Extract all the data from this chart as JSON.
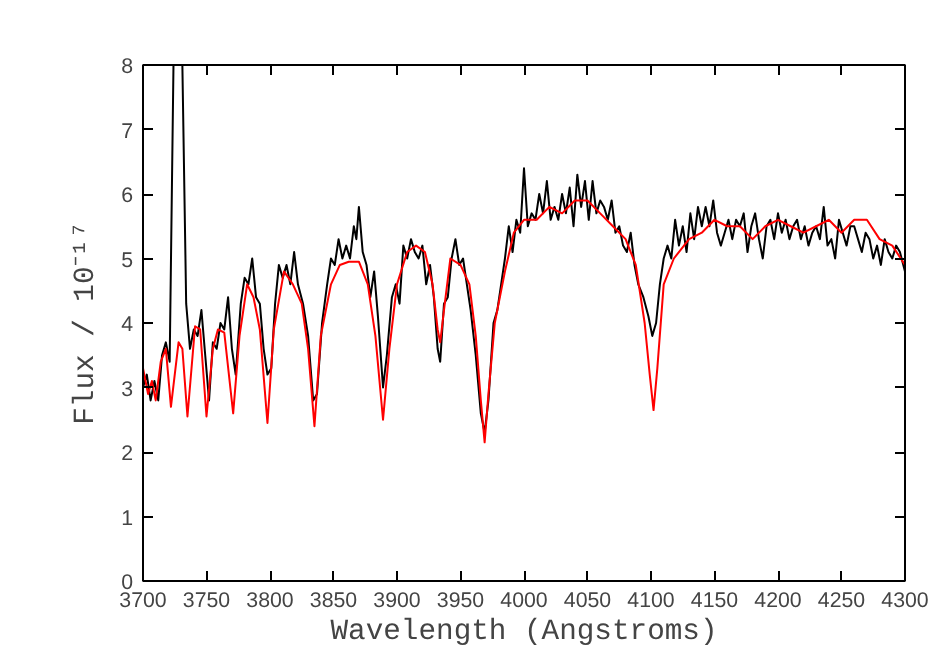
{
  "chart_data": {
    "type": "line",
    "xlabel": "Wavelength (Angstroms)",
    "ylabel": "Flux / 10⁻¹⁷",
    "xlim": [
      3700,
      4300
    ],
    "ylim": [
      0,
      8
    ],
    "xticks": [
      3700,
      3750,
      3800,
      3850,
      3900,
      3950,
      4000,
      4050,
      4100,
      4150,
      4200,
      4250,
      4300
    ],
    "yticks": [
      0,
      1,
      2,
      3,
      4,
      5,
      6,
      7,
      8
    ],
    "grid": false,
    "marker": "none",
    "line_style": "solid",
    "series": [
      {
        "color": "#000000",
        "x": [
          3700,
          3703,
          3706,
          3709,
          3712,
          3715,
          3718,
          3721,
          3724,
          3731,
          3734,
          3737,
          3740,
          3743,
          3746,
          3749,
          3752,
          3755,
          3758,
          3761,
          3764,
          3767,
          3770,
          3773,
          3777,
          3780,
          3783,
          3786,
          3789,
          3792,
          3795,
          3798,
          3801,
          3804,
          3807,
          3810,
          3813,
          3816,
          3819,
          3822,
          3826,
          3830,
          3834,
          3837,
          3841,
          3845,
          3848,
          3851,
          3854,
          3857,
          3860,
          3863,
          3866,
          3868,
          3870,
          3873,
          3876,
          3879,
          3882,
          3885,
          3889,
          3892,
          3896,
          3899,
          3902,
          3905,
          3908,
          3911,
          3914,
          3917,
          3920,
          3923,
          3926,
          3929,
          3932,
          3934,
          3937,
          3940,
          3943,
          3946,
          3949,
          3952,
          3955,
          3958,
          3962,
          3966,
          3969,
          3972,
          3976,
          3979,
          3982,
          3985,
          3988,
          3991,
          3994,
          3997,
          4000,
          4003,
          4006,
          4009,
          4012,
          4015,
          4018,
          4021,
          4024,
          4027,
          4030,
          4033,
          4036,
          4039,
          4042,
          4045,
          4048,
          4051,
          4054,
          4057,
          4060,
          4063,
          4066,
          4069,
          4072,
          4075,
          4078,
          4081,
          4084,
          4087,
          4090,
          4094,
          4098,
          4101,
          4104,
          4107,
          4110,
          4113,
          4116,
          4119,
          4122,
          4125,
          4128,
          4131,
          4134,
          4137,
          4140,
          4143,
          4146,
          4149,
          4152,
          4155,
          4158,
          4161,
          4164,
          4167,
          4170,
          4173,
          4176,
          4179,
          4182,
          4185,
          4188,
          4191,
          4194,
          4197,
          4200,
          4203,
          4206,
          4209,
          4212,
          4215,
          4218,
          4221,
          4224,
          4227,
          4230,
          4233,
          4236,
          4239,
          4242,
          4245,
          4248,
          4251,
          4254,
          4257,
          4260,
          4263,
          4266,
          4269,
          4272,
          4275,
          4278,
          4281,
          4284,
          4287,
          4290,
          4293,
          4296,
          4300
        ],
        "values": [
          3.0,
          3.2,
          2.8,
          3.1,
          2.8,
          3.5,
          3.7,
          3.4,
          8,
          8,
          4.3,
          3.6,
          3.9,
          3.8,
          4.2,
          3.5,
          2.8,
          3.7,
          3.6,
          4.0,
          3.9,
          4.4,
          3.6,
          3.2,
          4.3,
          4.7,
          4.6,
          5.0,
          4.4,
          4.3,
          3.6,
          3.2,
          3.3,
          4.3,
          4.9,
          4.7,
          4.9,
          4.6,
          5.1,
          4.6,
          4.3,
          3.8,
          2.8,
          2.9,
          4.0,
          4.6,
          5.0,
          4.9,
          5.3,
          5.0,
          5.2,
          5.0,
          5.5,
          5.3,
          5.8,
          5.1,
          4.9,
          4.4,
          4.8,
          4.1,
          3.0,
          3.5,
          4.4,
          4.6,
          4.3,
          5.2,
          5.0,
          5.3,
          5.1,
          5.0,
          5.2,
          4.6,
          4.9,
          4.4,
          3.6,
          3.4,
          4.3,
          4.4,
          5.0,
          5.3,
          4.9,
          5.0,
          4.6,
          4.2,
          3.5,
          2.6,
          2.3,
          2.8,
          4.0,
          4.2,
          4.6,
          5.0,
          5.5,
          5.1,
          5.6,
          5.4,
          6.4,
          5.5,
          5.7,
          5.6,
          6.0,
          5.7,
          6.2,
          5.6,
          5.8,
          5.6,
          6.0,
          5.7,
          6.1,
          5.5,
          6.3,
          5.8,
          6.2,
          5.6,
          6.2,
          5.7,
          5.9,
          5.8,
          5.6,
          5.9,
          5.4,
          5.5,
          5.2,
          5.1,
          5.4,
          4.9,
          4.6,
          4.4,
          4.1,
          3.8,
          4.0,
          4.6,
          5.0,
          5.2,
          5.0,
          5.6,
          5.2,
          5.5,
          5.1,
          5.7,
          5.3,
          5.8,
          5.5,
          5.8,
          5.5,
          5.9,
          5.4,
          5.2,
          5.4,
          5.6,
          5.3,
          5.6,
          5.5,
          5.7,
          5.1,
          5.5,
          5.7,
          5.3,
          5.0,
          5.5,
          5.6,
          5.3,
          5.7,
          5.4,
          5.6,
          5.3,
          5.5,
          5.6,
          5.3,
          5.5,
          5.2,
          5.4,
          5.5,
          5.3,
          5.8,
          5.2,
          5.3,
          5.0,
          5.6,
          5.4,
          5.2,
          5.5,
          5.5,
          5.3,
          5.1,
          5.4,
          5.3,
          5.0,
          5.2,
          4.9,
          5.3,
          5.1,
          5.0,
          5.2,
          5.1,
          4.8
        ]
      },
      {
        "color": "#ff0000",
        "x": [
          3700,
          3704,
          3707,
          3710,
          3714,
          3718,
          3722,
          3728,
          3731,
          3735,
          3741,
          3745,
          3750,
          3755,
          3759,
          3764,
          3771,
          3776,
          3782,
          3787,
          3792,
          3798,
          3803,
          3811,
          3818,
          3825,
          3830,
          3835,
          3840,
          3848,
          3855,
          3862,
          3870,
          3877,
          3883,
          3889,
          3894,
          3900,
          3908,
          3915,
          3922,
          3928,
          3932,
          3934,
          3937,
          3942,
          3950,
          3957,
          3962,
          3966,
          3969,
          3972,
          3977,
          3985,
          3992,
          4000,
          4010,
          4020,
          4030,
          4040,
          4050,
          4060,
          4070,
          4080,
          4088,
          4095,
          4099,
          4102,
          4105,
          4110,
          4118,
          4130,
          4140,
          4150,
          4160,
          4170,
          4180,
          4190,
          4200,
          4210,
          4220,
          4230,
          4240,
          4250,
          4260,
          4270,
          4280,
          4290,
          4300
        ],
        "values": [
          3.3,
          2.9,
          3.1,
          2.8,
          3.4,
          3.6,
          2.7,
          3.7,
          3.6,
          2.55,
          3.95,
          3.9,
          2.55,
          3.6,
          3.9,
          3.85,
          2.6,
          3.8,
          4.6,
          4.4,
          3.9,
          2.45,
          3.9,
          4.8,
          4.6,
          4.3,
          3.6,
          2.4,
          3.8,
          4.6,
          4.9,
          4.95,
          4.95,
          4.6,
          3.8,
          2.5,
          3.6,
          4.6,
          5.1,
          5.2,
          5.1,
          4.6,
          3.9,
          3.7,
          4.2,
          5.0,
          4.9,
          4.6,
          3.8,
          2.8,
          2.15,
          2.9,
          4.0,
          4.8,
          5.4,
          5.6,
          5.6,
          5.8,
          5.7,
          5.9,
          5.9,
          5.7,
          5.5,
          5.3,
          4.9,
          4.0,
          3.2,
          2.65,
          3.3,
          4.6,
          5.0,
          5.3,
          5.4,
          5.6,
          5.5,
          5.5,
          5.3,
          5.5,
          5.6,
          5.5,
          5.4,
          5.5,
          5.6,
          5.4,
          5.6,
          5.6,
          5.3,
          5.2,
          4.9
        ]
      }
    ]
  }
}
